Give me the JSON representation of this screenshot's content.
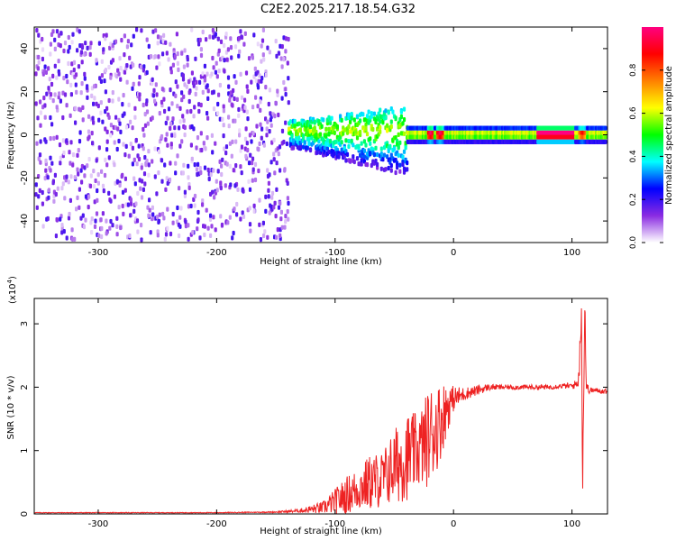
{
  "figure": {
    "title": "C2E2.2025.217.18.54.G32"
  },
  "chart_data": [
    {
      "type": "heatmap",
      "xlabel": "Height of straight line (km)",
      "ylabel": "Frequency (Hz)",
      "xlim": [
        -354,
        130
      ],
      "ylim": [
        -50,
        50
      ],
      "x_ticks": [
        -300,
        -200,
        -100,
        0,
        100
      ],
      "y_ticks": [
        -40,
        -20,
        0,
        20,
        40
      ],
      "grid": false,
      "colorbar": {
        "label": "Normalized spectral amplitude",
        "range": [
          0,
          1
        ],
        "ticks": [
          0.0,
          0.2,
          0.4,
          0.6,
          0.8
        ],
        "colors": [
          "#ffffff",
          "#8a2be2",
          "#0000ff",
          "#00ffff",
          "#00ff00",
          "#ffff00",
          "#ff8000",
          "#ff0000",
          "#ff0080"
        ]
      },
      "regions": [
        {
          "x_range": [
            -354,
            -140
          ],
          "y_range": [
            -50,
            50
          ],
          "amplitude_range": [
            0.02,
            0.2
          ],
          "pattern": "scattered noise"
        },
        {
          "x_range": [
            -140,
            -40
          ],
          "center_freq_hz": 3,
          "amplitude_range": [
            0.2,
            0.55
          ],
          "pattern": "band, spread downward to -10 Hz"
        },
        {
          "x_range": [
            -40,
            130
          ],
          "center_freq_hz": 1,
          "amplitude_range": [
            0.4,
            1.0
          ],
          "pattern": "narrow band with peaks near -20, -12, 70-100, 108"
        }
      ]
    },
    {
      "type": "line",
      "xlabel": "Height of straight line (km)",
      "ylabel": "SNR (10 * v/v)",
      "y_multiplier": "(x10",
      "y_multiplier_exp": "4",
      "xlim": [
        -354,
        130
      ],
      "ylim": [
        0,
        3.4
      ],
      "x_ticks": [
        -300,
        -200,
        -100,
        0,
        100
      ],
      "y_ticks": [
        0,
        1,
        2,
        3
      ],
      "grid": false,
      "color": "#ee2222",
      "series": [
        {
          "x": [
            -354,
            -300,
            -250,
            -200,
            -150,
            -130,
            -110,
            -100,
            -90,
            -80,
            -70,
            -60,
            -50,
            -40,
            -30,
            -25,
            -20,
            -15,
            -10,
            -5,
            0,
            10,
            20,
            30,
            40,
            50,
            60,
            70,
            80,
            90,
            100,
            104,
            106,
            108,
            109,
            110,
            111,
            112,
            115,
            120,
            130
          ],
          "y": [
            0.02,
            0.02,
            0.02,
            0.02,
            0.03,
            0.05,
            0.1,
            0.2,
            0.3,
            0.4,
            0.5,
            0.55,
            0.75,
            0.9,
            1.0,
            1.1,
            1.25,
            1.35,
            1.5,
            1.7,
            1.82,
            1.9,
            1.95,
            2.0,
            2.0,
            2.0,
            2.0,
            2.0,
            2.0,
            2.02,
            2.02,
            2.05,
            2.2,
            3.3,
            0.3,
            2.4,
            3.3,
            2.0,
            1.95,
            1.95,
            1.93
          ],
          "noise_amplitude": [
            0.005,
            0.005,
            0.005,
            0.005,
            0.01,
            0.03,
            0.1,
            0.2,
            0.3,
            0.35,
            0.45,
            0.45,
            0.6,
            0.7,
            0.6,
            0.7,
            0.8,
            0.7,
            0.6,
            0.4,
            0.2,
            0.1,
            0.08,
            0.05,
            0.04,
            0.04,
            0.04,
            0.04,
            0.04,
            0.04,
            0.05,
            0.08,
            0.2,
            0.3,
            0.3,
            0.5,
            0.3,
            0.1,
            0.05,
            0.04,
            0.04
          ]
        }
      ]
    }
  ]
}
